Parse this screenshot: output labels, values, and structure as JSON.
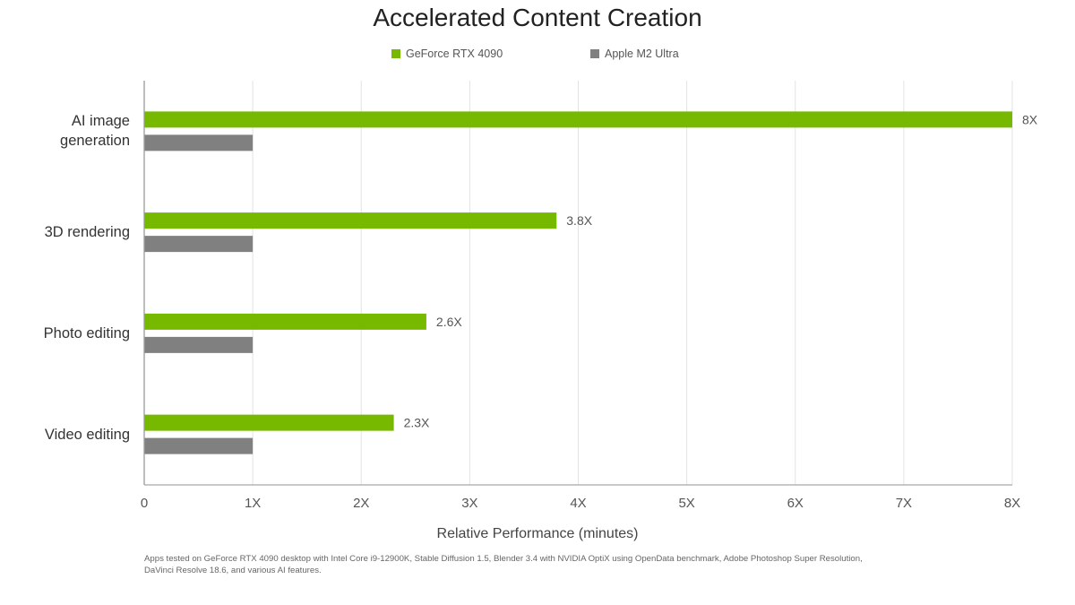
{
  "chart_data": {
    "type": "bar",
    "orientation": "horizontal",
    "title": "Accelerated Content Creation",
    "categories": [
      "AI image generation",
      "3D rendering",
      "Photo editing",
      "Video editing"
    ],
    "series": [
      {
        "name": "GeForce RTX 4090",
        "color": "#76b900",
        "values": [
          8,
          3.8,
          2.6,
          2.3
        ],
        "data_labels": [
          "8X",
          "3.8X",
          "2.6X",
          "2.3X"
        ]
      },
      {
        "name": "Apple M2 Ultra",
        "color": "#808080",
        "values": [
          1,
          1,
          1,
          1
        ]
      }
    ],
    "xlabel": "Relative Performance (minutes)",
    "xlim": [
      0,
      8
    ],
    "xticks": [
      0,
      1,
      2,
      3,
      4,
      5,
      6,
      7,
      8
    ],
    "xtick_labels": [
      "0",
      "1X",
      "2X",
      "3X",
      "4X",
      "5X",
      "6X",
      "7X",
      "8X"
    ],
    "grid": true,
    "legend": "top-center",
    "footnote": [
      "Apps tested on GeForce RTX 4090 desktop with Intel Core i9-12900K, Stable Diffusion 1.5, Blender 3.4 with NVIDIA OptiX using OpenData benchmark, Adobe Photoshop Super Resolution,",
      "DaVinci Resolve 18.6, and various AI features."
    ]
  }
}
